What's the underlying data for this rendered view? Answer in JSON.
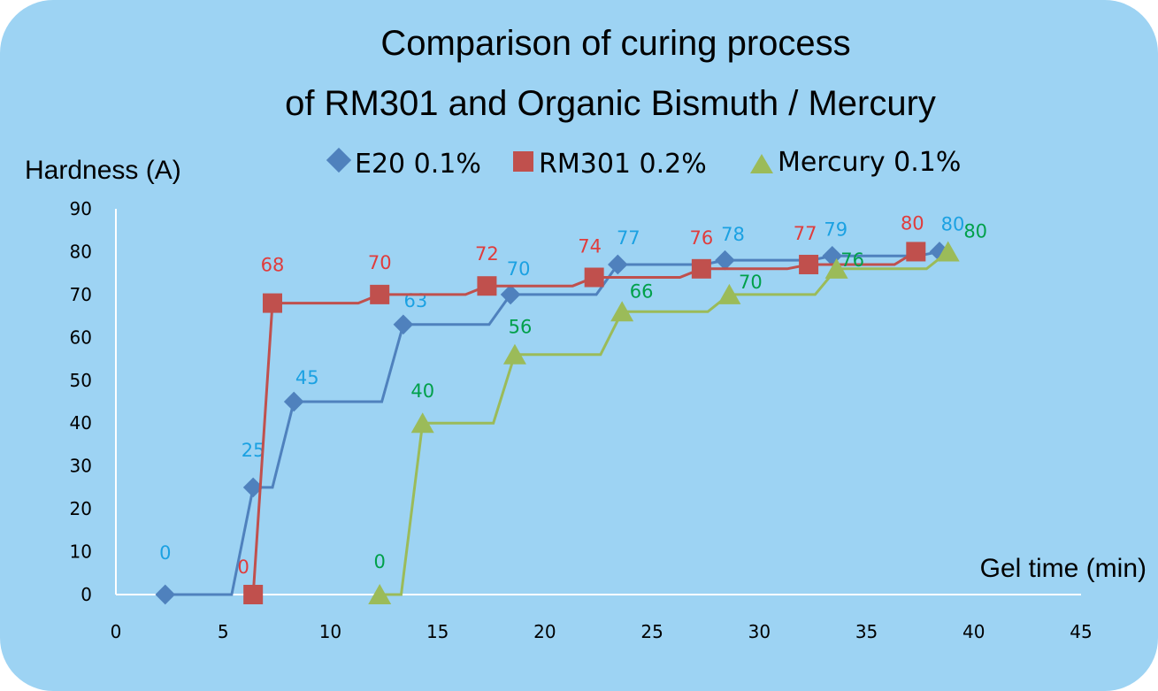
{
  "chart_data": {
    "type": "line",
    "title_lines": [
      "Comparison of curing process",
      "of RM301 and Organic Bismuth / Mercury"
    ],
    "xlabel": "Gel time (min)",
    "ylabel": "Hardness (A)",
    "xlim": [
      0,
      45
    ],
    "ylim": [
      0,
      90
    ],
    "x_ticks": [
      "0",
      "5",
      "10",
      "15",
      "20",
      "25",
      "30",
      "35",
      "40",
      "45"
    ],
    "y_ticks": [
      "0",
      "10",
      "20",
      "30",
      "40",
      "50",
      "60",
      "70",
      "80",
      "90"
    ],
    "grid": false,
    "legend_position": "top",
    "series": [
      {
        "name": "E20 0.1%",
        "color": "#4f81bd",
        "label_color": "#1ba1e2",
        "marker": "diamond",
        "x": [
          2.3,
          6.4,
          8.3,
          13.4,
          18.4,
          23.4,
          28.4,
          33.4,
          38.4
        ],
        "y": [
          0,
          25,
          45,
          63,
          70,
          77,
          78,
          79,
          80
        ],
        "labels": [
          "0",
          "25",
          "45",
          "63",
          "70",
          "77",
          "78",
          "79",
          "80"
        ]
      },
      {
        "name": "RM301 0.2%",
        "color": "#c0504d",
        "label_color": "#e03c3c",
        "marker": "square",
        "x": [
          6.4,
          7.3,
          12.3,
          17.3,
          22.3,
          27.3,
          32.3,
          37.3
        ],
        "y": [
          0,
          68,
          70,
          72,
          74,
          76,
          77,
          80
        ],
        "labels": [
          "0",
          "68",
          "70",
          "72",
          "74",
          "76",
          "77",
          "80"
        ]
      },
      {
        "name": "Mercury 0.1%",
        "color": "#9bbb59",
        "label_color": "#00a04a",
        "marker": "triangle",
        "x": [
          12.3,
          14.3,
          18.6,
          23.6,
          28.6,
          33.6,
          38.8
        ],
        "y": [
          0,
          40,
          56,
          66,
          70,
          76,
          80
        ],
        "labels": [
          "0",
          "40",
          "56",
          "66",
          "70",
          "76",
          "80"
        ]
      }
    ]
  }
}
